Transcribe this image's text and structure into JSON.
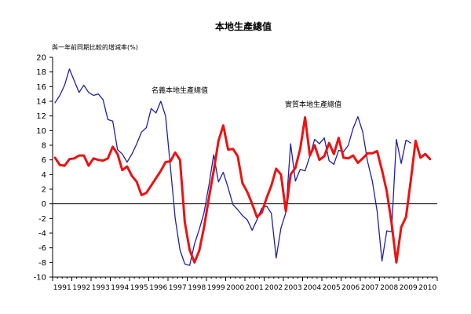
{
  "chart_data": {
    "type": "line",
    "title": "本地生產總值",
    "ylabel": "與一年前同期比較的增減率(%)",
    "xlabel": "",
    "ylim": [
      -10,
      20
    ],
    "yticks": [
      20,
      18,
      16,
      14,
      12,
      10,
      8,
      6,
      4,
      2,
      0,
      -2,
      -4,
      -6,
      -8,
      -10
    ],
    "x_tick_labels": [
      "1991",
      "1992",
      "1993",
      "1994",
      "1995",
      "1996",
      "1997",
      "1998",
      "1999",
      "2000",
      "2001",
      "2002",
      "2003",
      "2004",
      "2005",
      "2006",
      "2007",
      "2008",
      "2009",
      "2010"
    ],
    "x_start_year": 1991,
    "quarters_per_year": 4,
    "grid": false,
    "legend": "none",
    "annotations": [
      {
        "text": "名義本地生產總值",
        "series": 0
      },
      {
        "text": "實質本地生產總值",
        "series": 1
      }
    ],
    "series": [
      {
        "color": "#1f1fa8",
        "values": [
          13.8,
          14.8,
          16.2,
          18.4,
          16.8,
          15.2,
          16.2,
          15.2,
          14.8,
          15.0,
          14.2,
          11.5,
          11.3,
          7.4,
          6.8,
          5.7,
          6.8,
          8.2,
          9.8,
          10.4,
          13.0,
          12.4,
          14.0,
          12.0,
          5.0,
          -2.0,
          -6.3,
          -8.2,
          -8.4,
          -5.5,
          -3.5,
          -1.2,
          2.5,
          6.7,
          3.0,
          4.3,
          2.2,
          -0.1,
          -0.8,
          -1.6,
          -2.2,
          -3.6,
          -2.2,
          -0.6,
          -0.3,
          -1.3,
          -7.4,
          -3.3,
          -1.2,
          8.2,
          3.1,
          4.7,
          4.5,
          6.5,
          8.8,
          8.2,
          9.0,
          5.9,
          5.4,
          7.3,
          7.1,
          8.0,
          10.3,
          11.9,
          9.8,
          5.8,
          3.1,
          -1.0,
          -7.8,
          -3.7,
          -3.8,
          8.8,
          5.5,
          8.7,
          8.3
        ]
      },
      {
        "color": "#ee1111",
        "values": [
          6.3,
          5.3,
          5.2,
          6.1,
          6.2,
          6.6,
          6.6,
          5.2,
          6.2,
          6.0,
          5.9,
          6.2,
          7.8,
          6.8,
          4.6,
          5.1,
          3.8,
          3.0,
          1.2,
          1.5,
          2.5,
          3.5,
          4.5,
          5.7,
          5.8,
          7.0,
          6.0,
          -2.5,
          -6.3,
          -8.0,
          -6.4,
          -3.2,
          0.8,
          4.5,
          8.6,
          10.7,
          7.4,
          7.5,
          6.5,
          2.8,
          1.6,
          0.0,
          -1.8,
          -1.2,
          0.8,
          2.5,
          4.8,
          4.0,
          -1.0,
          4.0,
          4.9,
          7.5,
          11.8,
          6.6,
          8.0,
          6.0,
          6.5,
          8.3,
          6.8,
          9.0,
          6.3,
          6.2,
          6.6,
          5.6,
          6.2,
          6.9,
          6.9,
          7.2,
          4.6,
          1.7,
          -2.6,
          -8.0,
          -3.2,
          -1.8,
          3.2,
          8.6,
          6.3,
          6.8,
          6.1
        ]
      }
    ]
  }
}
